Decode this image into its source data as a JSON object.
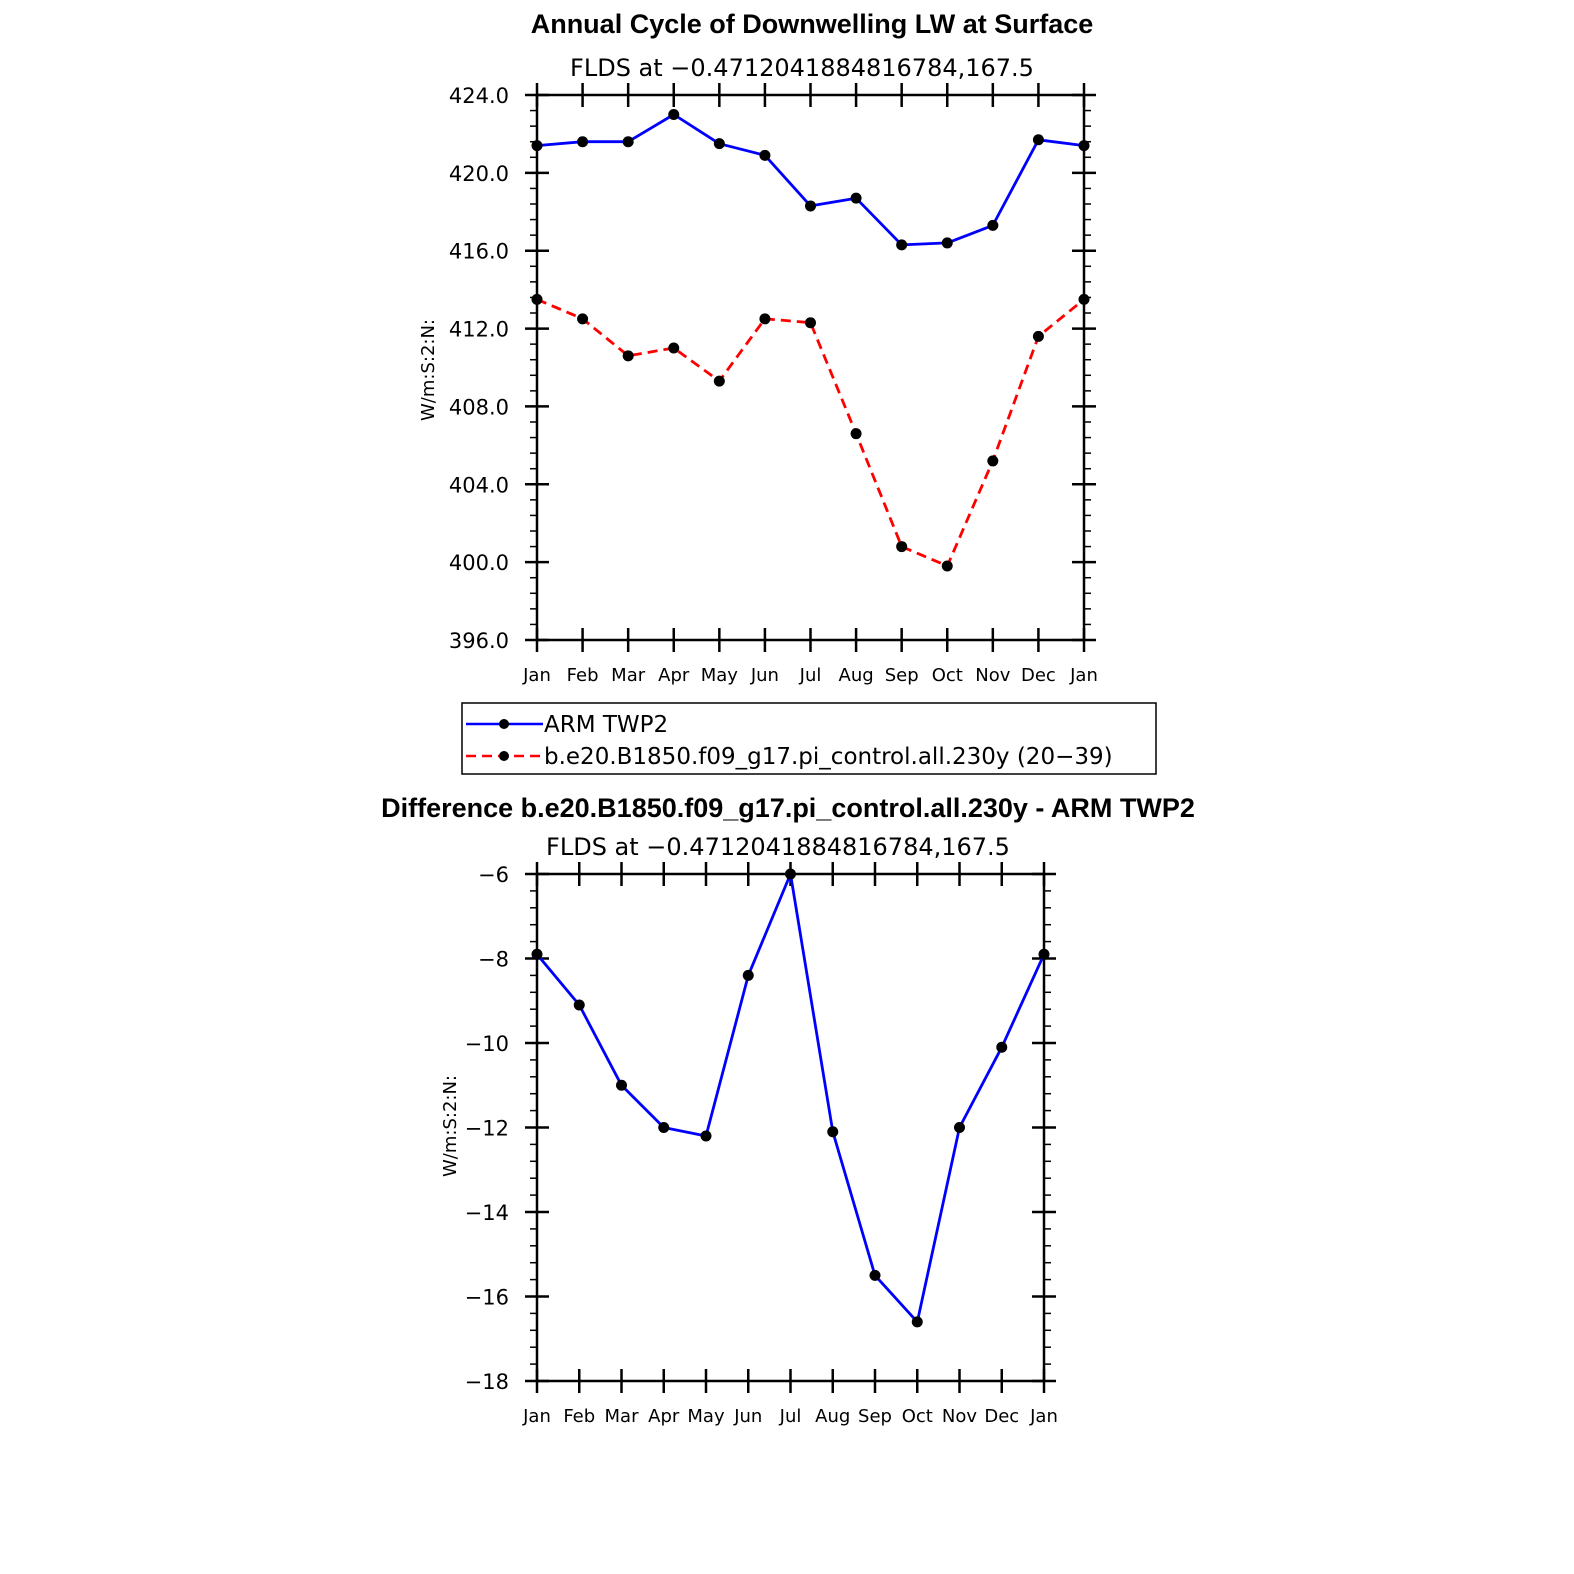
{
  "chart_data": [
    {
      "type": "line",
      "title": "Annual Cycle of Downwelling LW at Surface",
      "subtitle": "FLDS at −0.4712041884816784,167.5",
      "ylabel": "W/m:S:2:N:",
      "ylim": [
        396.0,
        424.0
      ],
      "yticks": [
        396.0,
        400.0,
        404.0,
        408.0,
        412.0,
        416.0,
        420.0,
        424.0
      ],
      "ytick_labels": [
        "396.0",
        "400.0",
        "404.0",
        "408.0",
        "412.0",
        "416.0",
        "420.0",
        "424.0"
      ],
      "categories": [
        "Jan",
        "Feb",
        "Mar",
        "Apr",
        "May",
        "Jun",
        "Jul",
        "Aug",
        "Sep",
        "Oct",
        "Nov",
        "Dec",
        "Jan"
      ],
      "series": [
        {
          "name": "ARM TWP2",
          "color": "#0000ff",
          "dash": "solid",
          "values": [
            421.4,
            421.6,
            421.6,
            423.0,
            421.5,
            420.9,
            418.3,
            418.7,
            416.3,
            416.4,
            417.3,
            421.7,
            421.4
          ]
        },
        {
          "name": "b.e20.B1850.f09_g17.pi_control.all.230y (20−39)",
          "color": "#ff0000",
          "dash": "dashed",
          "values": [
            413.5,
            412.5,
            410.6,
            411.0,
            409.3,
            412.5,
            412.3,
            406.6,
            400.8,
            399.8,
            405.2,
            411.6,
            413.5
          ]
        }
      ],
      "legend": "below"
    },
    {
      "type": "line",
      "title": "Difference b.e20.B1850.f09_g17.pi_control.all.230y - ARM TWP2",
      "subtitle": "FLDS at −0.4712041884816784,167.5",
      "ylabel": "W/m:S:2:N:",
      "ylim": [
        -18,
        -6
      ],
      "yticks": [
        -18,
        -16,
        -14,
        -12,
        -10,
        -8,
        -6
      ],
      "ytick_labels": [
        "−18",
        "−16",
        "−14",
        "−12",
        "−10",
        "−8",
        "−6"
      ],
      "categories": [
        "Jan",
        "Feb",
        "Mar",
        "Apr",
        "May",
        "Jun",
        "Jul",
        "Aug",
        "Sep",
        "Oct",
        "Nov",
        "Dec",
        "Jan"
      ],
      "series": [
        {
          "name": "Difference",
          "color": "#0000ff",
          "dash": "solid",
          "values": [
            -7.9,
            -9.1,
            -11.0,
            -12.0,
            -12.2,
            -8.4,
            -6.0,
            -12.1,
            -15.5,
            -16.6,
            -12.0,
            -10.1,
            -7.9
          ]
        }
      ]
    }
  ]
}
